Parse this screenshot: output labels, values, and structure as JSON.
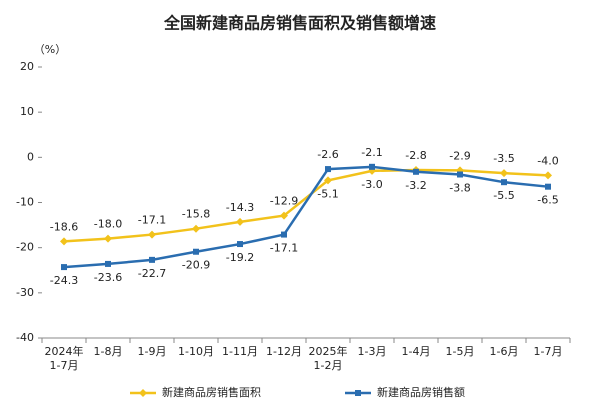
{
  "chart_data": {
    "type": "line",
    "title": "全国新建商品房销售面积及销售额增速",
    "y_unit": "（%）",
    "categories": [
      "2024年\n1-7月",
      "1-8月",
      "1-9月",
      "1-10月",
      "1-11月",
      "1-12月",
      "2025年\n1-2月",
      "1-3月",
      "1-4月",
      "1-5月",
      "1-6月",
      "1-7月"
    ],
    "series": [
      {
        "name": "新建商品房销售面积",
        "color": "#f2c21b",
        "values": [
          -18.6,
          -18.0,
          -17.1,
          -15.8,
          -14.3,
          -12.9,
          -5.1,
          -3.0,
          -2.8,
          -2.9,
          -3.5,
          -4.0
        ],
        "value_labels": [
          "-18.6",
          "-18.0",
          "-17.1",
          "-15.8",
          "-14.3",
          "-12.9",
          "-5.1",
          "-3.0",
          "-2.8",
          "-2.9",
          "-3.5",
          "-4.0"
        ]
      },
      {
        "name": "新建商品房销售额",
        "color": "#2a6db0",
        "values": [
          -24.3,
          -23.6,
          -22.7,
          -20.9,
          -19.2,
          -17.1,
          -2.6,
          -2.1,
          -3.2,
          -3.8,
          -5.5,
          -6.5
        ],
        "value_labels": [
          "-24.3",
          "-23.6",
          "-22.7",
          "-20.9",
          "-19.2",
          "-17.1",
          "-2.6",
          "-2.1",
          "-3.2",
          "-3.8",
          "-5.5",
          "-6.5"
        ]
      }
    ],
    "ylim": [
      -40,
      20
    ],
    "yticks": [
      -40,
      -30,
      -20,
      -10,
      0,
      10,
      20
    ],
    "grid": false,
    "legend": "bottom"
  }
}
